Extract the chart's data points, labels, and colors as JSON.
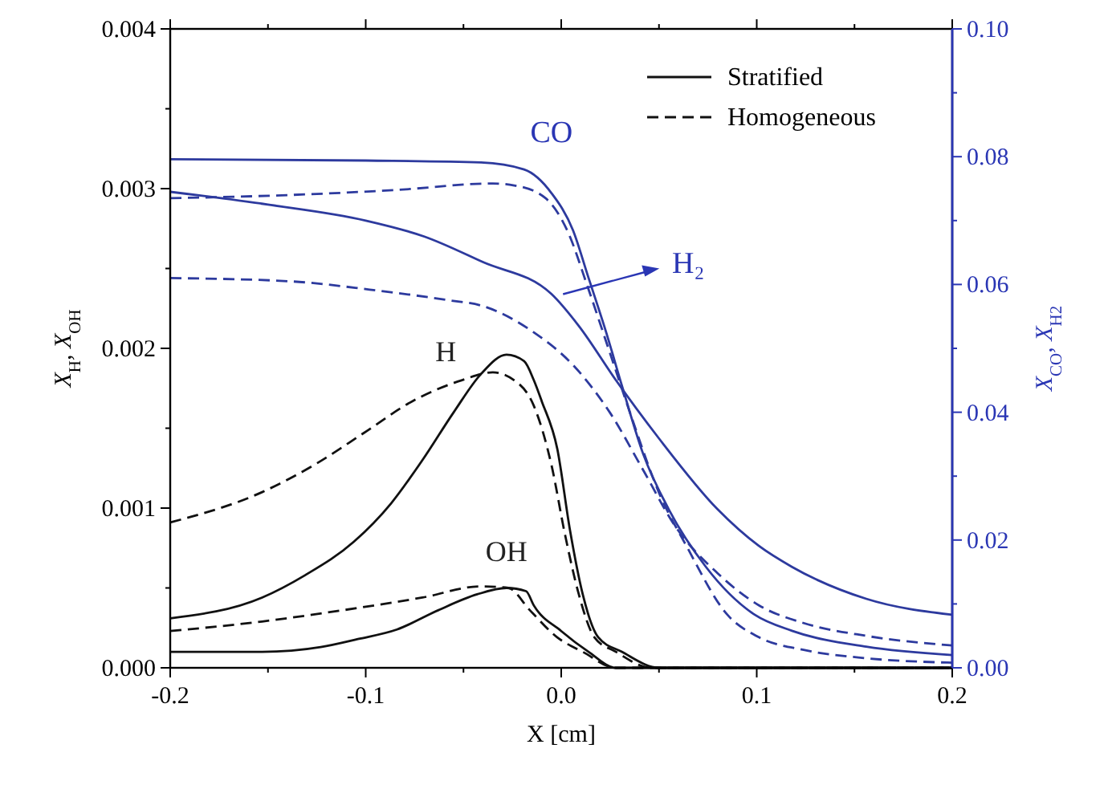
{
  "chart_data": {
    "type": "line",
    "xlabel": "X [cm]",
    "ylabel": "X$_{H}$, X$_{OH}$",
    "y2label": "X$_{CO}$, X$_{H2}$",
    "xlim": [
      -0.2,
      0.2
    ],
    "xticks": [
      {
        "value": -0.2,
        "label": "-0.2"
      },
      {
        "value": -0.15,
        "label": null
      },
      {
        "value": -0.1,
        "label": "-0.1"
      },
      {
        "value": -0.05,
        "label": null
      },
      {
        "value": 0,
        "label": "0.0"
      },
      {
        "value": 0.05,
        "label": null
      },
      {
        "value": 0.1,
        "label": "0.1"
      },
      {
        "value": 0.15,
        "label": null
      },
      {
        "value": 0.2,
        "label": "0.2"
      }
    ],
    "ylim": [
      0,
      0.004
    ],
    "yticks": [
      {
        "value": 0,
        "label": "0.000"
      },
      {
        "value": 0.0005,
        "label": null
      },
      {
        "value": 0.001,
        "label": "0.001"
      },
      {
        "value": 0.0015,
        "label": null
      },
      {
        "value": 0.002,
        "label": "0.002"
      },
      {
        "value": 0.0025,
        "label": null
      },
      {
        "value": 0.003,
        "label": "0.003"
      },
      {
        "value": 0.0035,
        "label": null
      },
      {
        "value": 0.004,
        "label": "0.004"
      }
    ],
    "y2lim": [
      0,
      0.1
    ],
    "y2ticks": [
      {
        "value": 0,
        "label": "0.00"
      },
      {
        "value": 0.01,
        "label": null
      },
      {
        "value": 0.02,
        "label": "0.02"
      },
      {
        "value": 0.03,
        "label": null
      },
      {
        "value": 0.04,
        "label": "0.04"
      },
      {
        "value": 0.05,
        "label": null
      },
      {
        "value": 0.06,
        "label": "0.06"
      },
      {
        "value": 0.07,
        "label": null
      },
      {
        "value": 0.08,
        "label": "0.08"
      },
      {
        "value": 0.09,
        "label": null
      },
      {
        "value": 0.1,
        "label": "0.10"
      }
    ],
    "legend": "top right",
    "grid": false,
    "series": [
      {
        "name": "Stratified",
        "color": "#111111",
        "line_style": "solid",
        "x": [
          -0.2,
          -0.153,
          -0.131,
          -0.106,
          -0.087,
          -0.071,
          -0.055,
          -0.041,
          -0.028,
          -0.019,
          -0.014,
          -0.01,
          -0.002,
          0.0045,
          0.011,
          0.019,
          0.031,
          0.05,
          0.1,
          0.2
        ],
        "values": [
          0.00031,
          0.00044,
          0.00058,
          0.00079,
          0.00103,
          0.0013,
          0.0016,
          0.00184,
          0.00196,
          0.00192,
          0.0018,
          0.00167,
          0.00137,
          0.00086,
          0.00046,
          0.00019,
          0.0001,
          0,
          0,
          0
        ]
      },
      {
        "name": "Homogeneous",
        "color": "#111111",
        "line_style": "dashed",
        "x": [
          -0.2,
          -0.153,
          -0.125,
          -0.101,
          -0.076,
          -0.051,
          -0.035,
          -0.024,
          -0.014,
          -0.005,
          0.002,
          0.009,
          0.017,
          0.028,
          0.046,
          0.1,
          0.2
        ],
        "values": [
          0.00091,
          0.0011,
          0.00128,
          0.00147,
          0.00167,
          0.0018,
          0.00185,
          0.0018,
          0.00164,
          0.00127,
          0.00083,
          0.00046,
          0.00019,
          0.0001,
          0,
          0,
          0
        ]
      },
      {
        "color": "#111111",
        "line_style": "solid",
        "x": [
          -0.2,
          -0.153,
          -0.123,
          -0.104,
          -0.084,
          -0.063,
          -0.043,
          -0.028,
          -0.018,
          -0.014,
          0,
          0.014,
          0.028,
          0.046,
          0.1,
          0.2
        ],
        "values": [
          0.0001,
          0.0001,
          0.00013,
          0.00018,
          0.00024,
          0.00036,
          0.00046,
          0.0005,
          0.00048,
          0.00039,
          0.00023,
          0.0001,
          0,
          0,
          0,
          0
        ]
      },
      {
        "color": "#111111",
        "line_style": "dashed",
        "x": [
          -0.2,
          -0.153,
          -0.112,
          -0.071,
          -0.041,
          -0.027,
          -0.016,
          -0.002,
          0.011,
          0.028,
          0.05,
          0.1,
          0.2
        ],
        "values": [
          0.00023,
          0.00029,
          0.00036,
          0.00044,
          0.00051,
          0.0005,
          0.00036,
          0.00019,
          0.0001,
          0,
          0,
          0,
          0
        ]
      },
      {
        "color": "#2d3a9e",
        "line_style": "solid",
        "axis": "y2",
        "x": [
          -0.2,
          -0.1,
          -0.041,
          -0.019,
          -0.005,
          0.006,
          0.014,
          0.023,
          0.031,
          0.042,
          0.055,
          0.074,
          0.099,
          0.118,
          0.156,
          0.2
        ],
        "values": [
          0.0796,
          0.0794,
          0.0791,
          0.078,
          0.0743,
          0.0685,
          0.061,
          0.0525,
          0.0442,
          0.0334,
          0.0248,
          0.0158,
          0.0083,
          0.0058,
          0.0033,
          0.002
        ]
      },
      {
        "color": "#2d3a9e",
        "line_style": "dashed",
        "axis": "y2",
        "x": [
          -0.2,
          -0.139,
          -0.084,
          -0.035,
          -0.024,
          -0.008,
          0.003,
          0.014,
          0.025,
          0.036,
          0.05,
          0.064,
          0.085,
          0.101,
          0.124,
          0.156,
          0.2
        ],
        "values": [
          0.0735,
          0.074,
          0.0748,
          0.0758,
          0.0755,
          0.0735,
          0.0685,
          0.0592,
          0.0492,
          0.0392,
          0.0274,
          0.0191,
          0.0083,
          0.0048,
          0.0028,
          0.0015,
          0.0008
        ]
      },
      {
        "color": "#2d3a9e",
        "line_style": "solid",
        "axis": "y2",
        "x": [
          -0.2,
          -0.15,
          -0.1,
          -0.07,
          -0.04,
          -0.005,
          0.009,
          0.028,
          0.05,
          0.08,
          0.101,
          0.118,
          0.156,
          0.2
        ],
        "values": [
          0.0745,
          0.0725,
          0.07,
          0.0675,
          0.0635,
          0.0585,
          0.0535,
          0.045,
          0.0359,
          0.0248,
          0.0191,
          0.0158,
          0.0108,
          0.0083
        ]
      },
      {
        "color": "#2d3a9e",
        "line_style": "dashed",
        "axis": "y2",
        "x": [
          -0.2,
          -0.139,
          -0.098,
          -0.057,
          -0.041,
          -0.014,
          0.006,
          0.025,
          0.042,
          0.058,
          0.08,
          0.101,
          0.124,
          0.156,
          0.2
        ],
        "values": [
          0.061,
          0.0605,
          0.0592,
          0.0575,
          0.0567,
          0.0525,
          0.0474,
          0.0399,
          0.0309,
          0.0223,
          0.0148,
          0.0098,
          0.007,
          0.005,
          0.0035
        ]
      }
    ],
    "annotations": [
      "H",
      "OH",
      "CO",
      "H₂"
    ]
  }
}
